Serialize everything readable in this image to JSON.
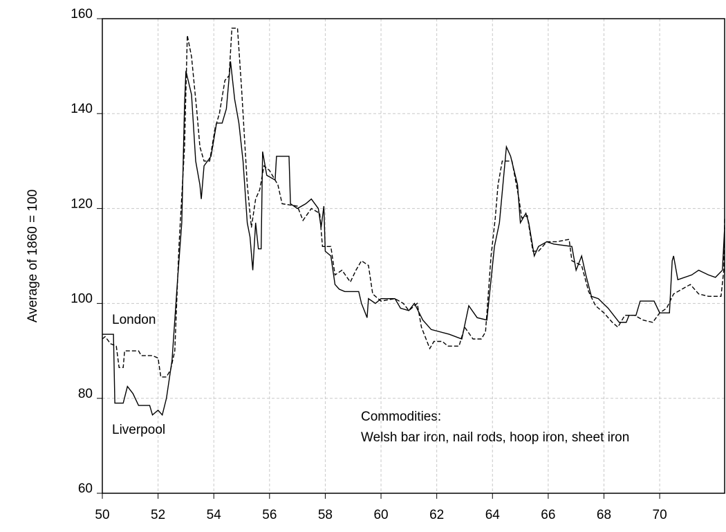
{
  "chart_data": {
    "type": "line",
    "ylabel": "Average of 1860 = 100",
    "annotations": [
      "Commodities:",
      "Welsh bar iron, nail rods, hoop iron, sheet iron"
    ],
    "xlim": [
      50,
      72.33
    ],
    "xticks": [
      50,
      52,
      54,
      56,
      58,
      60,
      62,
      64,
      66,
      68,
      70
    ],
    "ylim": [
      60,
      160
    ],
    "yticks": [
      60,
      80,
      100,
      120,
      140,
      160
    ],
    "grid": true,
    "series": [
      {
        "name": "Liverpool",
        "color": "#000000",
        "line_style": "solid",
        "x": [
          50.0,
          50.4,
          50.45,
          50.75,
          50.9,
          51.1,
          51.3,
          51.7,
          51.8,
          52.0,
          52.15,
          52.3,
          52.5,
          52.7,
          52.85,
          52.95,
          53.0,
          53.2,
          53.35,
          53.5,
          53.55,
          53.65,
          53.9,
          54.1,
          54.3,
          54.45,
          54.6,
          54.75,
          54.9,
          55.05,
          55.2,
          55.3,
          55.4,
          55.5,
          55.6,
          55.7,
          55.75,
          55.9,
          56.2,
          56.25,
          56.7,
          56.75,
          57.0,
          57.3,
          57.5,
          57.75,
          57.85,
          57.95,
          58.0,
          58.2,
          58.35,
          58.5,
          58.7,
          59.2,
          59.3,
          59.4,
          59.5,
          59.55,
          59.8,
          60.0,
          60.5,
          60.7,
          61.0,
          61.2,
          61.5,
          61.8,
          62.45,
          62.9,
          63.15,
          63.45,
          63.8,
          64.07,
          64.25,
          64.5,
          64.65,
          64.9,
          65.0,
          65.2,
          65.3,
          65.5,
          65.65,
          65.95,
          66.2,
          66.85,
          67.0,
          67.2,
          67.35,
          67.55,
          67.8,
          68.15,
          68.55,
          68.8,
          68.9,
          69.15,
          69.3,
          69.8,
          70.0,
          70.35,
          70.45,
          70.5,
          70.65,
          71.15,
          71.4,
          71.75,
          72.0,
          72.25,
          72.33
        ],
        "values": [
          93.5,
          93.5,
          79,
          79,
          82.5,
          81,
          78.5,
          78.5,
          76.5,
          77.5,
          76.5,
          80,
          88,
          105,
          117,
          142,
          149,
          144,
          130,
          125,
          122,
          129,
          131,
          138,
          138,
          141,
          151,
          143,
          138,
          130,
          117,
          114,
          107,
          117,
          111.5,
          111.5,
          132,
          127,
          126,
          131,
          131,
          121,
          120,
          121,
          122,
          120,
          116,
          120.5,
          111,
          110,
          104,
          103,
          102.5,
          102.5,
          100,
          98.5,
          97,
          101,
          100,
          101,
          101,
          99,
          98.5,
          100,
          96.5,
          94.5,
          93.5,
          92.5,
          99.5,
          97,
          96.5,
          112,
          117,
          133,
          131,
          125,
          117,
          119,
          117,
          110,
          112,
          113,
          112.5,
          112,
          107,
          110,
          106,
          101.5,
          101,
          99,
          96,
          96,
          97.5,
          97.5,
          100.5,
          100.5,
          98,
          98,
          109,
          110,
          105,
          106,
          107,
          106,
          105.5,
          107,
          116
        ]
      },
      {
        "name": "London",
        "color": "#000000",
        "line_style": "dashed",
        "x": [
          50.0,
          50.1,
          50.3,
          50.5,
          50.6,
          50.75,
          50.8,
          51.3,
          51.4,
          51.8,
          52.0,
          52.1,
          52.3,
          52.45,
          52.6,
          52.75,
          52.95,
          53.05,
          53.2,
          53.4,
          53.5,
          53.65,
          53.85,
          54.05,
          54.2,
          54.4,
          54.55,
          54.65,
          54.85,
          55.0,
          55.2,
          55.35,
          55.5,
          55.65,
          55.8,
          56.0,
          56.3,
          56.45,
          57.0,
          57.2,
          57.5,
          57.8,
          57.9,
          58.2,
          58.35,
          58.6,
          58.9,
          59.1,
          59.3,
          59.55,
          59.7,
          60.0,
          60.5,
          60.8,
          61.0,
          61.3,
          61.45,
          61.75,
          61.9,
          62.2,
          62.4,
          62.8,
          63.0,
          63.3,
          63.6,
          63.75,
          63.95,
          64.1,
          64.2,
          64.35,
          64.7,
          64.95,
          65.05,
          65.25,
          65.45,
          65.65,
          65.95,
          66.3,
          66.75,
          66.85,
          67.2,
          67.45,
          67.7,
          68.0,
          68.3,
          68.5,
          68.75,
          69.1,
          69.4,
          69.75,
          70.0,
          70.25,
          70.5,
          70.8,
          71.1,
          71.4,
          71.75,
          72.2,
          72.3,
          72.33
        ],
        "values": [
          92.5,
          93,
          91.5,
          91,
          86.5,
          86.5,
          90,
          90,
          89,
          89,
          88.5,
          84.5,
          84.5,
          86,
          90,
          112,
          133,
          156.5,
          152,
          140,
          133,
          130,
          130,
          137,
          140,
          147,
          148,
          158,
          158,
          145,
          125,
          116,
          122,
          124,
          129,
          128,
          125,
          121,
          120.5,
          117.5,
          120,
          119,
          112,
          112,
          106,
          107,
          104.5,
          107,
          109,
          108,
          102,
          100.5,
          101,
          100,
          98.5,
          100,
          95,
          90.5,
          92,
          92,
          91,
          91,
          95,
          92.5,
          92.5,
          94,
          110,
          118,
          125,
          130,
          130,
          122,
          118,
          118.5,
          111,
          111,
          113,
          113,
          113.5,
          109,
          108,
          102.5,
          99.5,
          98,
          96,
          95,
          97.5,
          97.5,
          96.5,
          96,
          98,
          99,
          102,
          103,
          104,
          102,
          101.5,
          101.5,
          107,
          118
        ]
      }
    ]
  }
}
